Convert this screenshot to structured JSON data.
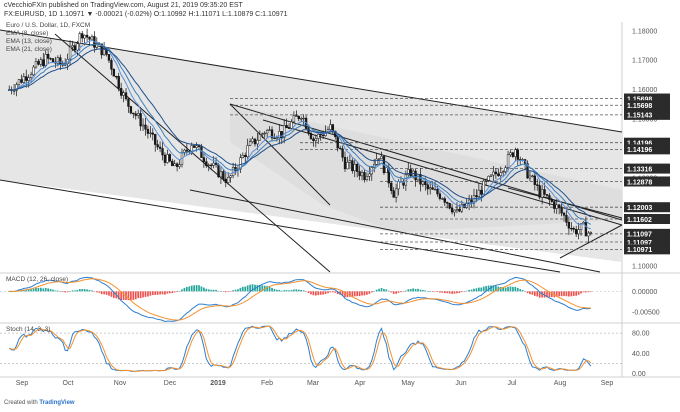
{
  "header": {
    "author_line": "cVecchioFXIn published on TradingView.com, August 21, 2019 09:35:20 EST",
    "symbol_line": "FX:EURUSD, 1D  1.10971  ▼ -0.00021 (-0.02%)  O:1.10992  H:1.11071  L:1.10879  C:1.10971",
    "instrument": "Euro / U.S. Dollar, 1D, FXCM",
    "ema_labels": [
      "EMA (8, close)",
      "EMA (13, close)",
      "EMA (21, close)"
    ]
  },
  "footer": {
    "text": "Created with",
    "brand": "TradingView"
  },
  "colors": {
    "up": "#ffffff",
    "down": "#1a1a1a",
    "ema8": "#5c8fd6",
    "ema13": "#3a7fb8",
    "ema21": "#1f4e8c",
    "macd": "#2d7fd0",
    "signal": "#f5922f",
    "hist_pos": "#26a69a",
    "hist_neg": "#ef5350",
    "stoch_k": "#2d7fd0",
    "stoch_d": "#f5922f",
    "channel_fill": "#e6e6e6"
  },
  "chart_data": [
    {
      "type": "candlestick",
      "title": "Euro / U.S. Dollar, 1D, FXCM",
      "x_ticks": [
        "Sep",
        "Oct",
        "Nov",
        "Dec",
        "2019",
        "Feb",
        "Mar",
        "Apr",
        "May",
        "Jun",
        "Jul",
        "Aug",
        "Sep"
      ],
      "y_ticks": [
        1.18,
        1.17,
        1.16,
        1.15,
        1.14,
        1.13,
        1.12,
        1.11,
        1.1
      ],
      "ylim": [
        1.098,
        1.183
      ],
      "price_levels": [
        {
          "label": "1.15698",
          "value": 1.15698,
          "style": "dark"
        },
        {
          "label": "1.15698",
          "value": 1.1547,
          "style": "dark"
        },
        {
          "label": "1.15143",
          "value": 1.15143,
          "style": "dark"
        },
        {
          "label": "1.14196",
          "value": 1.14196,
          "style": "dark"
        },
        {
          "label": "1.14196",
          "value": 1.1397,
          "style": "dark"
        },
        {
          "label": "1.13316",
          "value": 1.13316,
          "style": "dark"
        },
        {
          "label": "1.12878",
          "value": 1.12878,
          "style": "dark"
        },
        {
          "label": "1.12003",
          "value": 1.12003,
          "style": "dark"
        },
        {
          "label": "1.11602",
          "value": 1.11602,
          "style": "dark"
        },
        {
          "label": "1.11097",
          "value": 1.11097,
          "style": "dark"
        },
        {
          "label": "1.11097",
          "value": 1.1082,
          "style": "dark"
        },
        {
          "label": "1.10971",
          "value": 1.1057,
          "style": "dark"
        }
      ],
      "series": [
        {
          "name": "EMA (8, close)"
        },
        {
          "name": "EMA (13, close)"
        },
        {
          "name": "EMA (21, close)"
        }
      ]
    },
    {
      "type": "line",
      "title": "MACD (12, 26, close)",
      "y_ticks": [
        "0.00000",
        "-0.00500"
      ],
      "ylim": [
        -0.0075,
        0.0045
      ],
      "series": [
        {
          "name": "MACD"
        },
        {
          "name": "Signal"
        },
        {
          "name": "Histogram"
        }
      ]
    },
    {
      "type": "line",
      "title": "Stoch (14, 3, 3)",
      "y_ticks": [
        "80.00",
        "40.00",
        "0.00"
      ],
      "ylim": [
        -5,
        100
      ],
      "series": [
        {
          "name": "%K"
        },
        {
          "name": "%D"
        }
      ]
    }
  ]
}
